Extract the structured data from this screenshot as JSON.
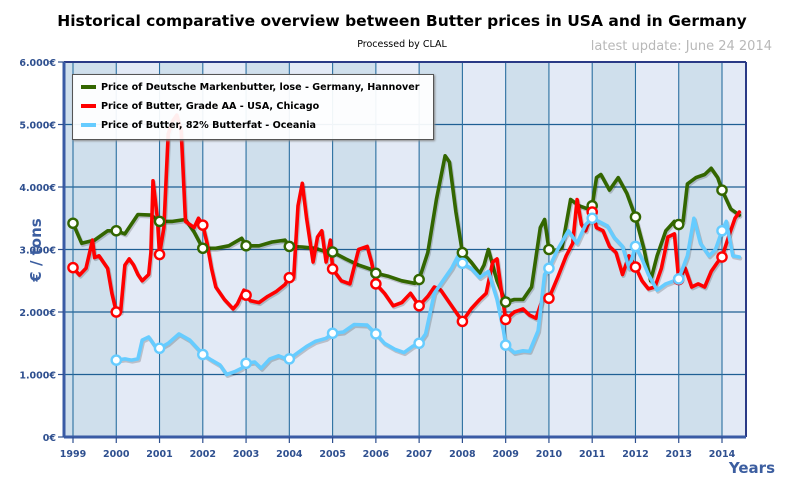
{
  "chart_data": {
    "type": "line",
    "title": "Historical comparative overview between Butter prices in USA and in Germany",
    "subtitle": "Processed by CLAL",
    "update_note": "latest update: June 24 2014",
    "xlabel": "Years",
    "ylabel": "€ / tons",
    "xlim": [
      1998.95,
      2014.6
    ],
    "ylim": [
      0,
      6000
    ],
    "x_ticks": [
      "1999",
      "2000",
      "2001",
      "2002",
      "2003",
      "2004",
      "2005",
      "2006",
      "2007",
      "2008",
      "2009",
      "2010",
      "2011",
      "2012",
      "2013",
      "2014"
    ],
    "y_ticks": [
      {
        "value": 0,
        "label": "0€"
      },
      {
        "value": 1000,
        "label": "1.000€"
      },
      {
        "value": 2000,
        "label": "2.000€"
      },
      {
        "value": 3000,
        "label": "3.000€"
      },
      {
        "value": 4000,
        "label": "4.000€"
      },
      {
        "value": 5000,
        "label": "5.000€"
      },
      {
        "value": 6000,
        "label": "6.000€"
      }
    ],
    "grid": true,
    "legend_position": "top-left",
    "series": [
      {
        "name": "Price of Deutsche Markenbutter, lose - Germany, Hannover",
        "color": "#336600",
        "x": [
          1999.0,
          1999.2,
          1999.5,
          1999.8,
          2000.0,
          2000.2,
          2000.5,
          2000.8,
          2001.0,
          2001.3,
          2001.6,
          2001.8,
          2002.0,
          2002.3,
          2002.6,
          2002.9,
          2003.0,
          2003.3,
          2003.6,
          2003.9,
          2004.0,
          2004.3,
          2004.6,
          2004.9,
          2005.0,
          2005.3,
          2005.6,
          2005.9,
          2006.0,
          2006.3,
          2006.6,
          2006.9,
          2007.0,
          2007.2,
          2007.4,
          2007.6,
          2007.7,
          2007.85,
          2008.0,
          2008.2,
          2008.4,
          2008.5,
          2008.6,
          2008.8,
          2009.0,
          2009.2,
          2009.4,
          2009.6,
          2009.8,
          2009.9,
          2010.0,
          2010.1,
          2010.3,
          2010.5,
          2010.7,
          2010.9,
          2011.0,
          2011.1,
          2011.2,
          2011.4,
          2011.6,
          2011.8,
          2012.0,
          2012.2,
          2012.35,
          2012.5,
          2012.7,
          2012.9,
          2013.0,
          2013.1,
          2013.2,
          2013.4,
          2013.6,
          2013.75,
          2013.9,
          2014.0,
          2014.2,
          2014.4
        ],
        "y": [
          3420,
          3100,
          3150,
          3300,
          3300,
          3250,
          3560,
          3550,
          3450,
          3450,
          3480,
          3280,
          3020,
          3020,
          3060,
          3180,
          3060,
          3060,
          3120,
          3150,
          3050,
          3040,
          3020,
          2950,
          2960,
          2850,
          2750,
          2680,
          2620,
          2570,
          2500,
          2460,
          2520,
          2950,
          3800,
          4500,
          4400,
          3600,
          2950,
          2800,
          2620,
          2750,
          3000,
          2500,
          2160,
          2200,
          2200,
          2400,
          3350,
          3480,
          3000,
          2980,
          3020,
          3800,
          3700,
          3650,
          3700,
          4150,
          4200,
          3950,
          4150,
          3900,
          3520,
          3000,
          2500,
          2900,
          3300,
          3450,
          3400,
          3450,
          4050,
          4150,
          4200,
          4300,
          4150,
          3950,
          3650,
          3550
        ]
      },
      {
        "name": "Price of Butter, Grade AA - USA, Chicago",
        "color": "#ff0000",
        "x": [
          1999.0,
          1999.15,
          1999.3,
          1999.45,
          1999.5,
          1999.6,
          1999.8,
          1999.9,
          2000.0,
          2000.1,
          2000.2,
          2000.3,
          2000.4,
          2000.5,
          2000.6,
          2000.75,
          2000.8,
          2000.85,
          2000.95,
          2001.0,
          2001.1,
          2001.2,
          2001.3,
          2001.4,
          2001.5,
          2001.6,
          2001.7,
          2001.8,
          2001.9,
          2002.0,
          2002.1,
          2002.2,
          2002.3,
          2002.5,
          2002.7,
          2002.8,
          2002.95,
          2003.0,
          2003.1,
          2003.3,
          2003.5,
          2003.7,
          2003.9,
          2004.0,
          2004.1,
          2004.2,
          2004.3,
          2004.4,
          2004.55,
          2004.65,
          2004.75,
          2004.85,
          2004.95,
          2005.0,
          2005.2,
          2005.4,
          2005.6,
          2005.8,
          2005.9,
          2006.0,
          2006.2,
          2006.4,
          2006.6,
          2006.8,
          2006.9,
          2007.0,
          2007.2,
          2007.35,
          2007.5,
          2007.7,
          2007.85,
          2008.0,
          2008.2,
          2008.4,
          2008.55,
          2008.7,
          2008.8,
          2008.9,
          2009.0,
          2009.2,
          2009.4,
          2009.55,
          2009.7,
          2009.85,
          2010.0,
          2010.2,
          2010.4,
          2010.55,
          2010.65,
          2010.75,
          2010.85,
          2011.0,
          2011.1,
          2011.25,
          2011.4,
          2011.55,
          2011.7,
          2011.85,
          2012.0,
          2012.15,
          2012.3,
          2012.45,
          2012.6,
          2012.75,
          2012.9,
          2013.0,
          2013.15,
          2013.3,
          2013.45,
          2013.6,
          2013.75,
          2013.9,
          2014.0,
          2014.15,
          2014.3,
          2014.4
        ],
        "y": [
          2710,
          2590,
          2700,
          3150,
          2870,
          2900,
          2700,
          2300,
          2000,
          2000,
          2750,
          2850,
          2750,
          2600,
          2500,
          2600,
          2950,
          4100,
          3500,
          2920,
          3350,
          4850,
          5050,
          5150,
          4900,
          3450,
          3400,
          3350,
          3500,
          3390,
          3100,
          2700,
          2400,
          2200,
          2050,
          2130,
          2350,
          2270,
          2180,
          2150,
          2250,
          2330,
          2440,
          2550,
          2550,
          3700,
          4060,
          3500,
          2800,
          3200,
          3300,
          2800,
          3150,
          2690,
          2500,
          2450,
          3000,
          3050,
          2800,
          2450,
          2300,
          2100,
          2150,
          2300,
          2200,
          2100,
          2250,
          2400,
          2350,
          2150,
          2000,
          1850,
          2050,
          2200,
          2300,
          2800,
          2850,
          2350,
          1880,
          2000,
          2050,
          1950,
          1900,
          2200,
          2220,
          2550,
          2900,
          3100,
          3800,
          3400,
          3300,
          3600,
          3350,
          3300,
          3050,
          2950,
          2600,
          2900,
          2720,
          2500,
          2370,
          2400,
          2700,
          3200,
          3250,
          2520,
          2700,
          2400,
          2450,
          2400,
          2650,
          2800,
          2880,
          3200,
          3500,
          3600
        ]
      },
      {
        "name": "Price of Butter, 82% Butterfat - Oceania",
        "color": "#66ccff",
        "x": [
          2000.0,
          2000.2,
          2000.35,
          2000.5,
          2000.6,
          2000.75,
          2000.9,
          2001.0,
          2001.2,
          2001.45,
          2001.7,
          2001.9,
          2002.0,
          2002.2,
          2002.4,
          2002.55,
          2002.75,
          2002.9,
          2003.0,
          2003.2,
          2003.35,
          2003.55,
          2003.75,
          2003.9,
          2004.0,
          2004.2,
          2004.4,
          2004.6,
          2004.85,
          2005.0,
          2005.25,
          2005.5,
          2005.8,
          2006.0,
          2006.2,
          2006.45,
          2006.65,
          2006.85,
          2007.0,
          2007.15,
          2007.35,
          2007.55,
          2007.75,
          2007.9,
          2008.0,
          2008.2,
          2008.4,
          2008.6,
          2008.8,
          2008.95,
          2009.0,
          2009.2,
          2009.4,
          2009.55,
          2009.75,
          2009.9,
          2010.0,
          2010.2,
          2010.45,
          2010.65,
          2010.85,
          2011.0,
          2011.15,
          2011.35,
          2011.5,
          2011.7,
          2011.85,
          2012.0,
          2012.15,
          2012.3,
          2012.5,
          2012.7,
          2012.9,
          2013.0,
          2013.2,
          2013.35,
          2013.5,
          2013.7,
          2013.85,
          2014.0,
          2014.1,
          2014.25,
          2014.4
        ],
        "y": [
          1230,
          1250,
          1230,
          1250,
          1550,
          1600,
          1450,
          1420,
          1500,
          1650,
          1550,
          1400,
          1320,
          1230,
          1150,
          1000,
          1050,
          1100,
          1180,
          1200,
          1100,
          1250,
          1300,
          1260,
          1250,
          1350,
          1450,
          1530,
          1580,
          1660,
          1680,
          1800,
          1790,
          1650,
          1500,
          1400,
          1350,
          1450,
          1500,
          1650,
          2300,
          2500,
          2700,
          2900,
          2780,
          2700,
          2550,
          2650,
          2200,
          1700,
          1470,
          1350,
          1380,
          1370,
          1700,
          2600,
          2700,
          3000,
          3300,
          3100,
          3400,
          3500,
          3450,
          3380,
          3200,
          3050,
          2700,
          3050,
          2850,
          2600,
          2350,
          2450,
          2500,
          2530,
          2900,
          3500,
          3100,
          2900,
          3000,
          3300,
          3450,
          2900,
          2880
        ]
      }
    ],
    "markers_at": "start of each year"
  }
}
